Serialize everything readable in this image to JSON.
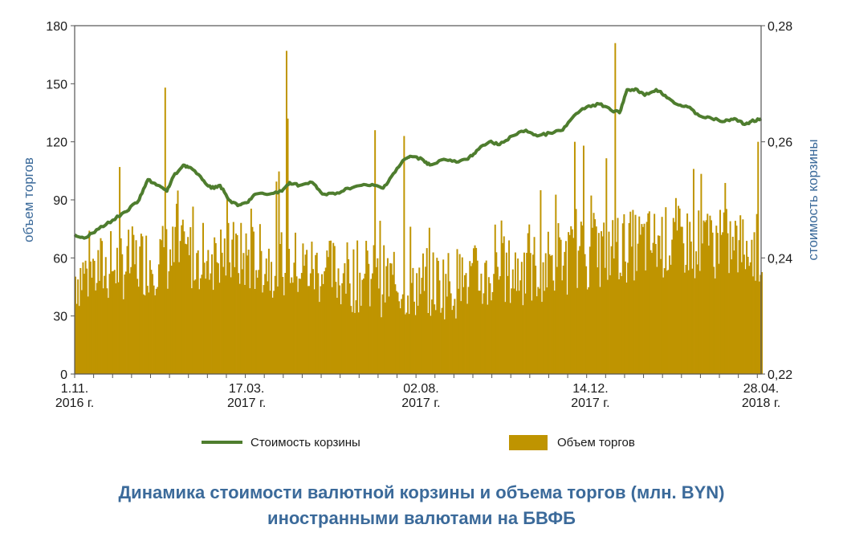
{
  "chart_data": {
    "type": "bar+line",
    "title_line1": "Динамика стоимости валютной корзины и объема торгов (млн. BYN)",
    "title_line2": "иностранными валютами на БВФБ",
    "ylabel_left": "объем торгов",
    "ylabel_right": "стоимость корзины",
    "ylim_left": [
      0,
      180
    ],
    "ylim_right": [
      0.22,
      0.28
    ],
    "yticks_left": [
      "0",
      "30",
      "60",
      "90",
      "120",
      "150",
      "180"
    ],
    "yticks_right": [
      "0,22",
      "0,24",
      "0,26",
      "0,28"
    ],
    "xticks": [
      {
        "date": "2016-11-01",
        "line1": "1.11.",
        "line2": "2016 г."
      },
      {
        "date": "2017-03-17",
        "line1": "17.03.",
        "line2": "2017 г."
      },
      {
        "date": "2017-08-02",
        "line1": "02.08.",
        "line2": "2017 г."
      },
      {
        "date": "2017-12-14",
        "line1": "14.12.",
        "line2": "2017 г."
      },
      {
        "date": "2018-04-28",
        "line1": "28.04.",
        "line2": "2018 г."
      }
    ],
    "x_range": [
      "2016-11-01",
      "2018-04-28"
    ],
    "legend_placement": "bottom",
    "colors": {
      "line": "#4e7d2e",
      "bars": "#bf9400",
      "axis": "#555555",
      "title": "#3b6a9a"
    },
    "series": [
      {
        "name": "Стоимость корзины",
        "type": "line",
        "axis": "right",
        "points": [
          [
            "2016-11-01",
            0.244
          ],
          [
            "2016-11-10",
            0.2435
          ],
          [
            "2016-11-20",
            0.245
          ],
          [
            "2016-12-01",
            0.2465
          ],
          [
            "2016-12-12",
            0.248
          ],
          [
            "2016-12-22",
            0.25
          ],
          [
            "2016-12-29",
            0.2535
          ],
          [
            "2017-01-06",
            0.2525
          ],
          [
            "2017-01-13",
            0.2515
          ],
          [
            "2017-01-18",
            0.254
          ],
          [
            "2017-01-26",
            0.256
          ],
          [
            "2017-02-01",
            0.2555
          ],
          [
            "2017-02-10",
            0.2535
          ],
          [
            "2017-02-17",
            0.252
          ],
          [
            "2017-02-24",
            0.2525
          ],
          [
            "2017-03-03",
            0.25
          ],
          [
            "2017-03-10",
            0.249
          ],
          [
            "2017-03-17",
            0.2495
          ],
          [
            "2017-03-24",
            0.251
          ],
          [
            "2017-04-04",
            0.251
          ],
          [
            "2017-04-14",
            0.2515
          ],
          [
            "2017-04-20",
            0.253
          ],
          [
            "2017-04-28",
            0.2525
          ],
          [
            "2017-05-08",
            0.253
          ],
          [
            "2017-05-16",
            0.251
          ],
          [
            "2017-05-26",
            0.251
          ],
          [
            "2017-06-05",
            0.252
          ],
          [
            "2017-06-16",
            0.2525
          ],
          [
            "2017-06-26",
            0.2525
          ],
          [
            "2017-07-03",
            0.252
          ],
          [
            "2017-07-11",
            0.2545
          ],
          [
            "2017-07-20",
            0.257
          ],
          [
            "2017-07-25",
            0.2575
          ],
          [
            "2017-08-03",
            0.257
          ],
          [
            "2017-08-09",
            0.256
          ],
          [
            "2017-08-20",
            0.257
          ],
          [
            "2017-08-30",
            0.2565
          ],
          [
            "2017-09-08",
            0.257
          ],
          [
            "2017-09-15",
            0.2585
          ],
          [
            "2017-09-25",
            0.26
          ],
          [
            "2017-10-03",
            0.2595
          ],
          [
            "2017-10-13",
            0.261
          ],
          [
            "2017-10-24",
            0.262
          ],
          [
            "2017-11-02",
            0.261
          ],
          [
            "2017-11-12",
            0.2615
          ],
          [
            "2017-11-22",
            0.262
          ],
          [
            "2017-12-01",
            0.2645
          ],
          [
            "2017-12-11",
            0.266
          ],
          [
            "2017-12-21",
            0.2665
          ],
          [
            "2017-12-30",
            0.2655
          ],
          [
            "2018-01-06",
            0.265
          ],
          [
            "2018-01-12",
            0.269
          ],
          [
            "2018-01-20",
            0.269
          ],
          [
            "2018-01-26",
            0.268
          ],
          [
            "2018-02-04",
            0.269
          ],
          [
            "2018-02-11",
            0.268
          ],
          [
            "2018-02-20",
            0.2665
          ],
          [
            "2018-03-01",
            0.266
          ],
          [
            "2018-03-10",
            0.2645
          ],
          [
            "2018-03-20",
            0.264
          ],
          [
            "2018-03-30",
            0.2635
          ],
          [
            "2018-04-07",
            0.264
          ],
          [
            "2018-04-15",
            0.263
          ],
          [
            "2018-04-20",
            0.2635
          ],
          [
            "2018-04-28",
            0.264
          ]
        ]
      },
      {
        "name": "Объем торгов",
        "type": "bar",
        "axis": "left",
        "note_range": [
          30,
          170
        ],
        "peaks": [
          [
            "2017-01-11",
            148
          ],
          [
            "2017-04-17",
            167
          ],
          [
            "2017-04-18",
            132
          ],
          [
            "2017-06-26",
            126
          ],
          [
            "2017-07-19",
            123
          ],
          [
            "2017-12-01",
            120
          ],
          [
            "2017-12-08",
            118
          ],
          [
            "2018-01-02",
            171
          ],
          [
            "2018-04-25",
            120
          ]
        ]
      }
    ]
  }
}
